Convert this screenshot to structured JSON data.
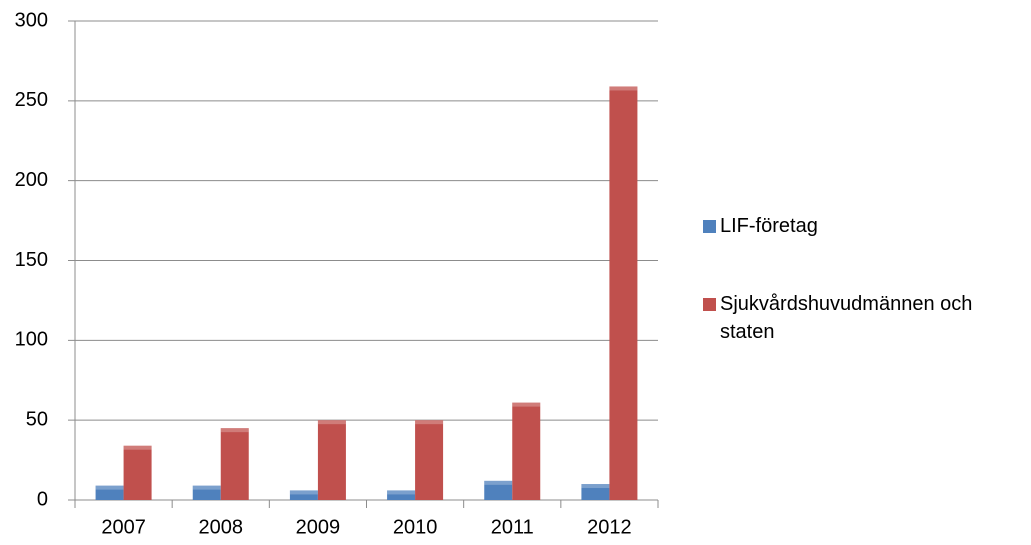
{
  "chart_data": {
    "type": "bar",
    "categories": [
      "2007",
      "2008",
      "2009",
      "2010",
      "2011",
      "2012"
    ],
    "series": [
      {
        "name": "LIF-företag",
        "color": "#4f81bd",
        "values": [
          9,
          9,
          6,
          6,
          12,
          10
        ]
      },
      {
        "name": "Sjukvårdshuvudmännen och staten",
        "color": "#c0504d",
        "values": [
          34,
          45,
          50,
          50,
          61,
          259
        ]
      }
    ],
    "ylim": [
      0,
      300
    ],
    "yticks": [
      0,
      50,
      100,
      150,
      200,
      250,
      300
    ],
    "grid": true,
    "legend": "right"
  }
}
